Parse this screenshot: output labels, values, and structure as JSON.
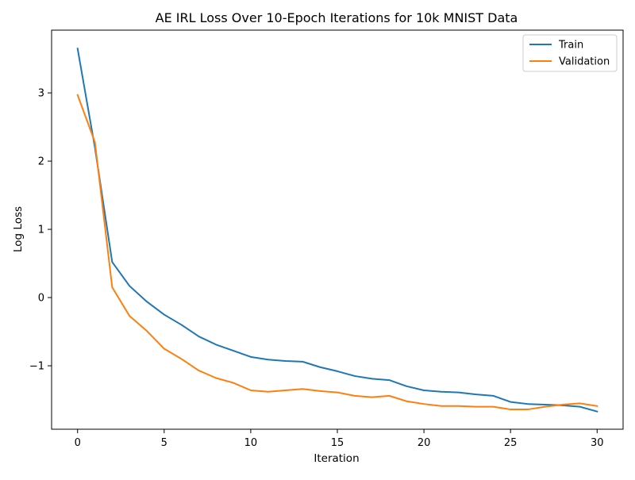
{
  "chart_data": {
    "type": "line",
    "title": "AE IRL Loss Over 10-Epoch Iterations for 10k MNIST Data",
    "xlabel": "Iteration",
    "ylabel": "Log Loss",
    "xlim": [
      -1.5,
      31.5
    ],
    "ylim": [
      -1.93,
      3.92
    ],
    "xticks": [
      0,
      5,
      10,
      15,
      20,
      25,
      30
    ],
    "xtick_labels": [
      "0",
      "5",
      "10",
      "15",
      "20",
      "25",
      "30"
    ],
    "yticks": [
      -1,
      0,
      1,
      2,
      3
    ],
    "ytick_labels": [
      "−1",
      "0",
      "1",
      "2",
      "3"
    ],
    "grid": false,
    "legend_position": "top-right",
    "x": [
      0,
      1,
      2,
      3,
      4,
      5,
      6,
      7,
      8,
      9,
      10,
      11,
      12,
      13,
      14,
      15,
      16,
      17,
      18,
      19,
      20,
      21,
      22,
      23,
      24,
      25,
      26,
      27,
      28,
      29,
      30
    ],
    "series": [
      {
        "name": "Train",
        "color": "#1f77b4",
        "values": [
          3.65,
          2.2,
          0.52,
          0.17,
          -0.06,
          -0.25,
          -0.4,
          -0.57,
          -0.69,
          -0.78,
          -0.87,
          -0.91,
          -0.93,
          -0.94,
          -1.02,
          -1.08,
          -1.15,
          -1.19,
          -1.21,
          -1.3,
          -1.36,
          -1.38,
          -1.39,
          -1.42,
          -1.44,
          -1.53,
          -1.56,
          -1.57,
          -1.58,
          -1.6,
          -1.67
        ]
      },
      {
        "name": "Validation",
        "color": "#ff7f0e",
        "values": [
          2.97,
          2.28,
          0.15,
          -0.27,
          -0.49,
          -0.75,
          -0.9,
          -1.07,
          -1.18,
          -1.25,
          -1.36,
          -1.38,
          -1.36,
          -1.34,
          -1.37,
          -1.39,
          -1.44,
          -1.46,
          -1.44,
          -1.52,
          -1.56,
          -1.59,
          -1.59,
          -1.6,
          -1.6,
          -1.64,
          -1.64,
          -1.6,
          -1.57,
          -1.55,
          -1.59
        ]
      }
    ]
  }
}
